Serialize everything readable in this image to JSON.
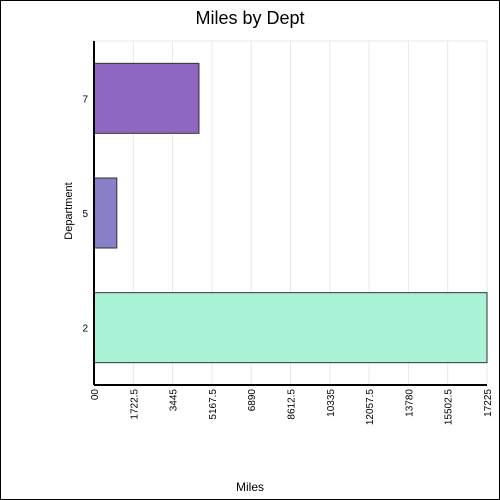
{
  "chart_data": {
    "type": "bar",
    "orientation": "horizontal",
    "title": "Miles by Dept",
    "xlabel": "Miles",
    "ylabel": "Department",
    "categories": [
      "2",
      "5",
      "7"
    ],
    "values": [
      17225,
      1000,
      4600
    ],
    "xlim": [
      0,
      17225
    ],
    "xticks": [
      "00",
      "1722.5",
      "3445",
      "5167.5",
      "6890",
      "8612.5",
      "10335",
      "12057.5",
      "13780",
      "15502.5",
      "17225"
    ],
    "grid": true,
    "colors": {
      "2": "#aaf3d7",
      "5": "#877fc7",
      "7": "#8f66c0",
      "bar_edge": "#333333",
      "grid": "#e8e8e8",
      "axis": "#000000"
    }
  }
}
